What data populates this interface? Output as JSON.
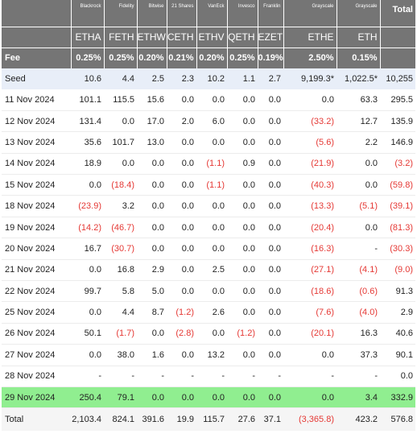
{
  "columns": [
    {
      "issuer": "Blackrock",
      "ticker": "ETHA",
      "fee": "0.25%"
    },
    {
      "issuer": "Fidelity",
      "ticker": "FETH",
      "fee": "0.25%"
    },
    {
      "issuer": "Bitwise",
      "ticker": "ETHW",
      "fee": "0.20%"
    },
    {
      "issuer": "21 Shares",
      "ticker": "CETH",
      "fee": "0.21%"
    },
    {
      "issuer": "VanEck",
      "ticker": "ETHV",
      "fee": "0.20%"
    },
    {
      "issuer": "Invesco",
      "ticker": "QETH",
      "fee": "0.25%"
    },
    {
      "issuer": "Franklin",
      "ticker": "EZET",
      "fee": "0.19%"
    },
    {
      "issuer": "Grayscale",
      "ticker": "ETHE",
      "fee": "2.50%"
    },
    {
      "issuer": "Grayscale",
      "ticker": "ETH",
      "fee": "0.15%"
    }
  ],
  "total_header": "Total",
  "fee_label": "Fee",
  "rows": [
    {
      "label": "Seed",
      "values": [
        "10.6",
        "4.4",
        "2.5",
        "2.3",
        "10.2",
        "1.1",
        "2.7",
        "9,199.3*",
        "1,022.5*"
      ],
      "total": "10,255",
      "style": "seed"
    },
    {
      "label": "11 Nov 2024",
      "values": [
        "101.1",
        "115.5",
        "15.6",
        "0.0",
        "0.0",
        "0.0",
        "0.0",
        "0.0",
        "63.3"
      ],
      "total": "295.5",
      "style": "data"
    },
    {
      "label": "12 Nov 2024",
      "values": [
        "131.4",
        "0.0",
        "17.0",
        "2.0",
        "6.0",
        "0.0",
        "0.0",
        "(33.2)",
        "12.7"
      ],
      "total": "135.9",
      "style": "data"
    },
    {
      "label": "13 Nov 2024",
      "values": [
        "35.6",
        "101.7",
        "13.0",
        "0.0",
        "0.0",
        "0.0",
        "0.0",
        "(5.6)",
        "2.2"
      ],
      "total": "146.9",
      "style": "data"
    },
    {
      "label": "14 Nov 2024",
      "values": [
        "18.9",
        "0.0",
        "0.0",
        "0.0",
        "(1.1)",
        "0.9",
        "0.0",
        "(21.9)",
        "0.0"
      ],
      "total": "(3.2)",
      "style": "data"
    },
    {
      "label": "15 Nov 2024",
      "values": [
        "0.0",
        "(18.4)",
        "0.0",
        "0.0",
        "(1.1)",
        "0.0",
        "0.0",
        "(40.3)",
        "0.0"
      ],
      "total": "(59.8)",
      "style": "data"
    },
    {
      "label": "18 Nov 2024",
      "values": [
        "(23.9)",
        "3.2",
        "0.0",
        "0.0",
        "0.0",
        "0.0",
        "0.0",
        "(13.3)",
        "(5.1)"
      ],
      "total": "(39.1)",
      "style": "data"
    },
    {
      "label": "19 Nov 2024",
      "values": [
        "(14.2)",
        "(46.7)",
        "0.0",
        "0.0",
        "0.0",
        "0.0",
        "0.0",
        "(20.4)",
        "0.0"
      ],
      "total": "(81.3)",
      "style": "data"
    },
    {
      "label": "20 Nov 2024",
      "values": [
        "16.7",
        "(30.7)",
        "0.0",
        "0.0",
        "0.0",
        "0.0",
        "0.0",
        "(16.3)",
        "-"
      ],
      "total": "(30.3)",
      "style": "data"
    },
    {
      "label": "21 Nov 2024",
      "values": [
        "0.0",
        "16.8",
        "2.9",
        "0.0",
        "2.5",
        "0.0",
        "0.0",
        "(27.1)",
        "(4.1)"
      ],
      "total": "(9.0)",
      "style": "data"
    },
    {
      "label": "22 Nov 2024",
      "values": [
        "99.7",
        "5.8",
        "5.0",
        "0.0",
        "0.0",
        "0.0",
        "0.0",
        "(18.6)",
        "(0.6)"
      ],
      "total": "91.3",
      "style": "data"
    },
    {
      "label": "25 Nov 2024",
      "values": [
        "0.0",
        "4.4",
        "8.7",
        "(1.2)",
        "2.6",
        "0.0",
        "0.0",
        "(7.6)",
        "(4.0)"
      ],
      "total": "2.9",
      "style": "data"
    },
    {
      "label": "26 Nov 2024",
      "values": [
        "50.1",
        "(1.7)",
        "0.0",
        "(2.8)",
        "0.0",
        "(1.2)",
        "0.0",
        "(20.1)",
        "16.3"
      ],
      "total": "40.6",
      "style": "data"
    },
    {
      "label": "27 Nov 2024",
      "values": [
        "0.0",
        "38.0",
        "1.6",
        "0.0",
        "13.2",
        "0.0",
        "0.0",
        "0.0",
        "37.3"
      ],
      "total": "90.1",
      "style": "data"
    },
    {
      "label": "28 Nov 2024",
      "values": [
        "-",
        "-",
        "-",
        "-",
        "-",
        "-",
        "-",
        "-",
        "-"
      ],
      "total": "0.0",
      "style": "data"
    },
    {
      "label": "29 Nov 2024",
      "values": [
        "250.4",
        "79.1",
        "0.0",
        "0.0",
        "0.0",
        "0.0",
        "0.0",
        "0.0",
        "3.4"
      ],
      "total": "332.9",
      "style": "highlight"
    },
    {
      "label": "Total",
      "values": [
        "2,103.4",
        "824.1",
        "391.6",
        "19.9",
        "115.7",
        "27.6",
        "37.1",
        "(3,365.8)",
        "423.2"
      ],
      "total": "576.8",
      "style": "total-row"
    }
  ],
  "colors": {
    "header_bg": "#757575",
    "seed_bg": "#e8eef8",
    "highlight_bg": "#90ee90",
    "negative": "#e53935"
  }
}
